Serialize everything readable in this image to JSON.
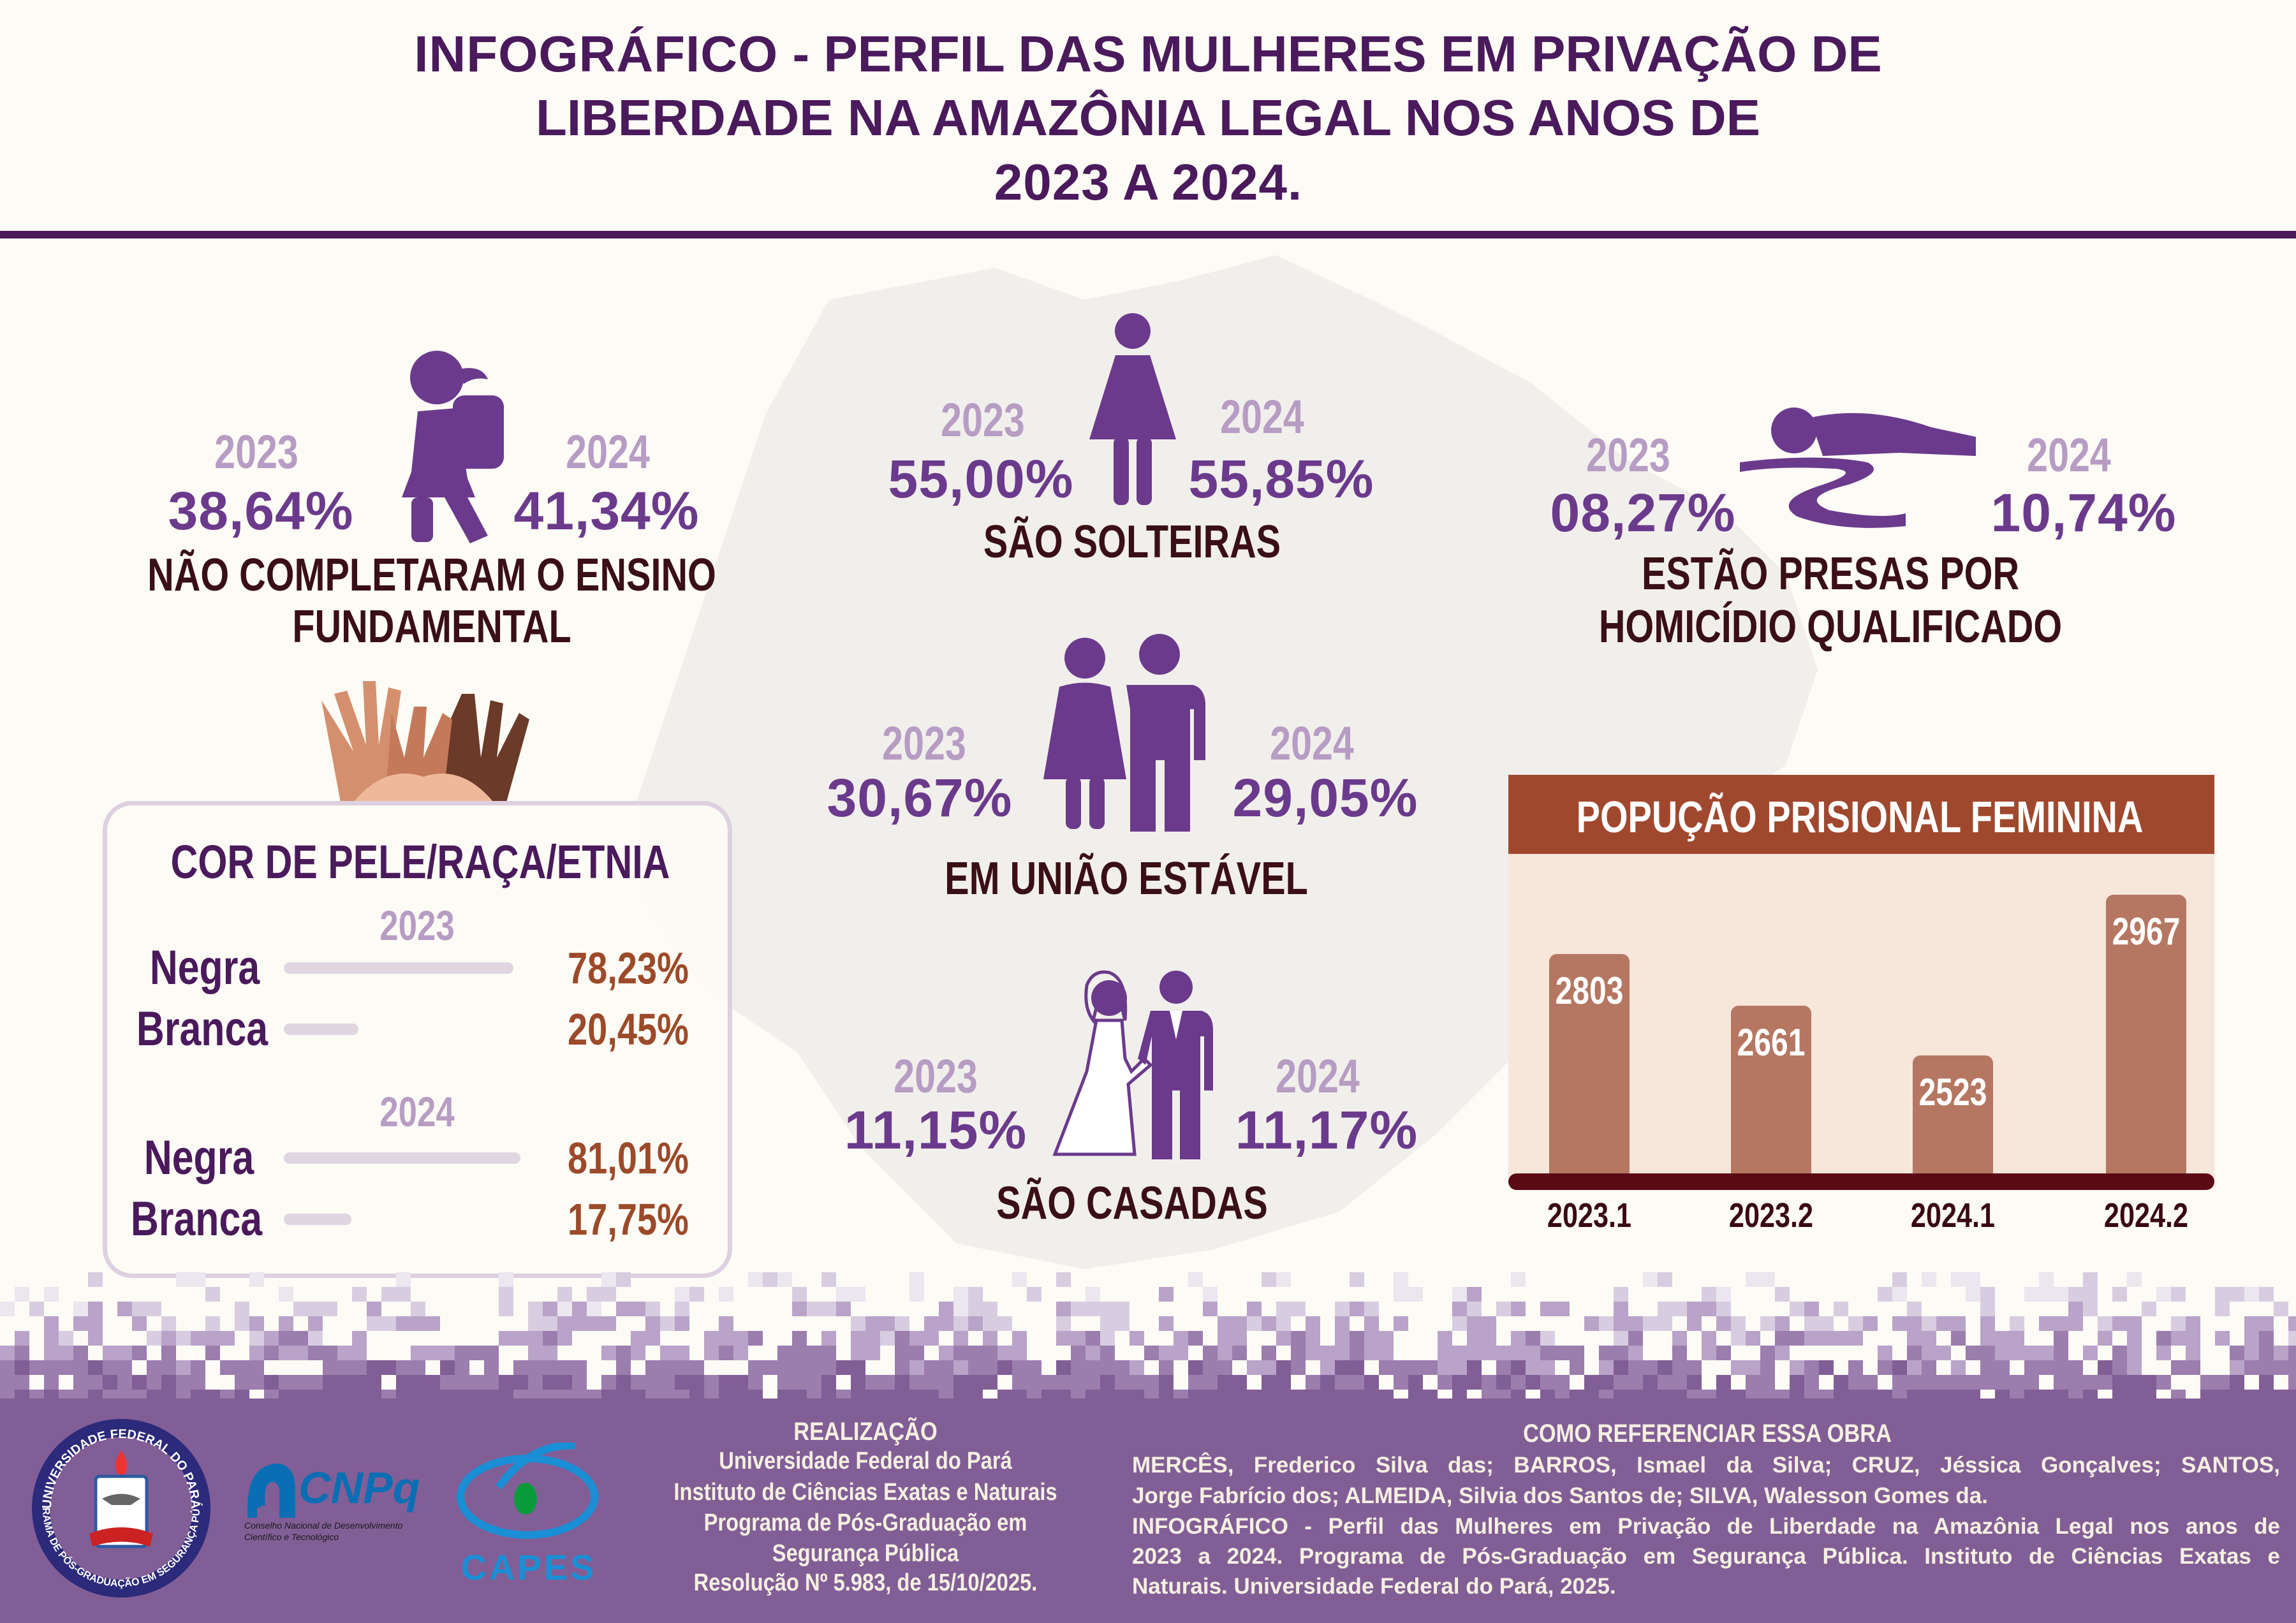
{
  "header": {
    "title_line1_bold": "INFOGRÁFICO",
    "title_line1_rest": " - PERFIL DAS MULHERES EM PRIVAÇÃO DE",
    "title_line2": "LIBERDADE NA AMAZÔNIA LEGAL NOS ANOS DE",
    "title_line3_year1": "2023",
    "title_line3_mid": " A ",
    "title_line3_year2": "2024",
    "title_line3_end": "."
  },
  "colors": {
    "title": "#4a1a5c",
    "year": "#b79cc4",
    "percent": "#6b3a8c",
    "caption": "#3a0f15",
    "icon": "#6b3a8c",
    "chart_header": "#a0482e",
    "chart_bar": "#b57762",
    "chart_bg": "#f7e6da",
    "footer": "#825e96"
  },
  "stats": {
    "education": {
      "year1": "2023",
      "value1": "38,64%",
      "year2": "2024",
      "value2": "41,34%",
      "caption_line1": "NÃO COMPLETARAM O ENSINO",
      "caption_line2": "FUNDAMENTAL",
      "icon": "schoolgirl-icon"
    },
    "single": {
      "year1": "2023",
      "value1": "55,00%",
      "year2": "2024",
      "value2": "55,85%",
      "caption": "SÃO SOLTEIRAS",
      "icon": "woman-icon"
    },
    "homicide": {
      "year1": "2023",
      "value1": "08,27%",
      "year2": "2024",
      "value2": "10,74%",
      "caption_line1": "ESTÃO PRESAS POR",
      "caption_line2": "HOMICÍDIO QUALIFICADO",
      "icon": "lying-body-icon"
    },
    "stable_union": {
      "year1": "2023",
      "value1": "30,67%",
      "year2": "2024",
      "value2": "29,05%",
      "caption": "EM UNIÃO ESTÁVEL",
      "icon": "couple-icon"
    },
    "married": {
      "year1": "2023",
      "value1": "11,15%",
      "year2": "2024",
      "value2": "11,17%",
      "caption": "SÃO CASADAS",
      "icon": "bride-groom-icon"
    }
  },
  "race": {
    "title": "COR DE PELE/RAÇA/ETNIA",
    "icon": "diverse-hands-icon",
    "groups": [
      {
        "year": "2023",
        "rows": [
          {
            "label": "Negra",
            "value": "78,23%",
            "percent": 78.23
          },
          {
            "label": "Branca",
            "value": "20,45%",
            "percent": 20.45
          }
        ]
      },
      {
        "year": "2024",
        "rows": [
          {
            "label": "Negra",
            "value": "81,01%",
            "percent": 81.01
          },
          {
            "label": "Branca",
            "value": "17,75%",
            "percent": 17.75
          }
        ]
      }
    ]
  },
  "chart_data": {
    "type": "bar",
    "title": "POPUÇÃO PRISIONAL FEMININA",
    "categories": [
      "2023.1",
      "2023.2",
      "2024.1",
      "2024.2"
    ],
    "values": [
      2803,
      2661,
      2523,
      2967
    ],
    "data_labels": [
      "2803",
      "2661",
      "2523",
      "2967"
    ],
    "xlabel": "",
    "ylabel": "",
    "grid": false,
    "legend": "none"
  },
  "footer": {
    "realization_title": "REALIZAÇÃO",
    "realization_lines": [
      "Universidade Federal do Pará",
      "Instituto de Ciências Exatas e Naturais",
      "Programa de Pós-Graduação em",
      "Segurança Pública",
      "Resolução Nº 5.983, de 15/10/2025."
    ],
    "reference_title": "COMO REFERENCIAR ESSA OBRA",
    "reference_lines": [
      "MERCÊS, Frederico Silva das; BARROS, Ismael da Silva; CRUZ, Jéssica Gonçalves; SANTOS,",
      "Jorge Fabrício dos; ALMEIDA, Silvia dos Santos de; SILVA, Walesson Gomes da.",
      "INFOGRÁFICO - Perfil das Mulheres em Privação de Liberdade na Amazônia Legal nos anos de",
      "2023 a 2024. Programa de Pós-Graduação em Segurança Pública. Instituto de Ciências Exatas e",
      "Naturais. Universidade Federal do Pará, 2025."
    ],
    "logos": {
      "ufpa_ring_top": "UNIVERSIDADE FEDERAL DO PARÁ",
      "ufpa_ring_bottom": "PROGRAMA DE PÓS-GRADUAÇÃO EM SEGURANÇA PÚBLICA",
      "cnpq_name": "CNPq",
      "cnpq_subtitle_line1": "Conselho Nacional de Desenvolvimento",
      "cnpq_subtitle_line2": "Científico e Tecnológico",
      "capes_name": "CAPES"
    }
  }
}
